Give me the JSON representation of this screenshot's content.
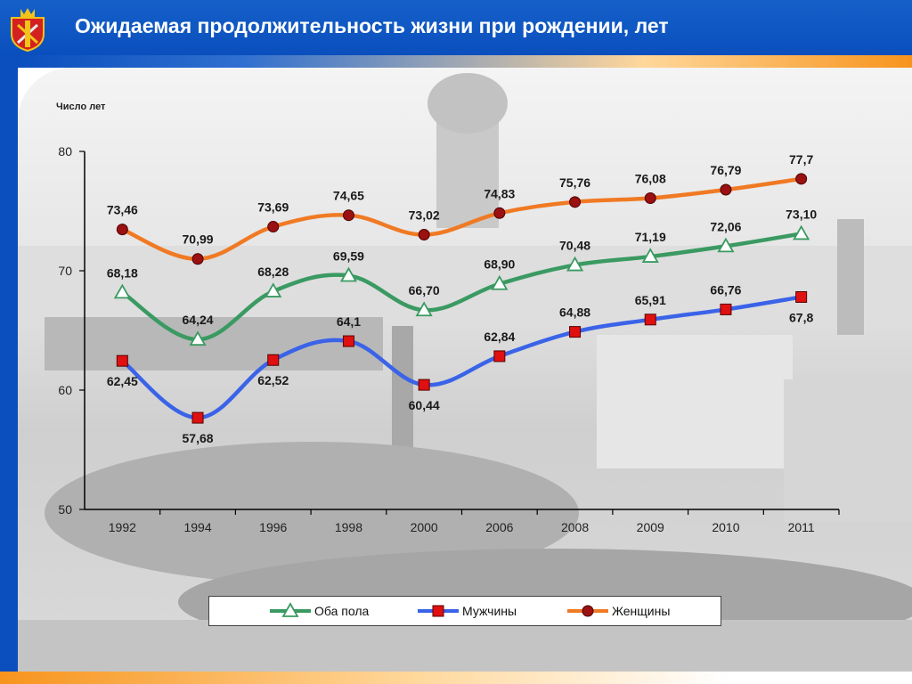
{
  "header": {
    "title": "Ожидаемая продолжительность жизни при рождении, лет"
  },
  "colors": {
    "header": "#0a4fbd",
    "both": "#3a9a62",
    "men": "#3a63e8",
    "women": "#f07a24",
    "men_marker": "#e01010",
    "women_marker": "#9b1010"
  },
  "chart_data": {
    "type": "line",
    "ylabel": "Число лет",
    "xlabel": "",
    "categories": [
      "1992",
      "1994",
      "1996",
      "1998",
      "2000",
      "2006",
      "2008",
      "2009",
      "2010",
      "2011"
    ],
    "ylim": [
      50,
      80
    ],
    "yticks": [
      "50",
      "60",
      "70",
      "80"
    ],
    "grid": false,
    "legend_position": "bottom",
    "series": [
      {
        "name": "Оба пола",
        "key": "both",
        "marker": "triangle",
        "values": [
          68.18,
          64.24,
          68.28,
          69.59,
          66.7,
          68.9,
          70.48,
          71.19,
          72.06,
          73.1
        ],
        "labels": [
          "68,18",
          "64,24",
          "68,28",
          "69,59",
          "66,70",
          "68,90",
          "70,48",
          "71,19",
          "72,06",
          "73,10"
        ]
      },
      {
        "name": "Мужчины",
        "key": "men",
        "marker": "square",
        "values": [
          62.45,
          57.68,
          62.52,
          64.1,
          60.44,
          62.84,
          64.88,
          65.91,
          66.76,
          67.8
        ],
        "labels": [
          "62,45",
          "57,68",
          "62,52",
          "64,1",
          "60,44",
          "62,84",
          "64,88",
          "65,91",
          "66,76",
          "67,8"
        ]
      },
      {
        "name": "Женщины",
        "key": "women",
        "marker": "circle",
        "values": [
          73.46,
          70.99,
          73.69,
          74.65,
          73.02,
          74.83,
          75.76,
          76.08,
          76.79,
          77.7
        ],
        "labels": [
          "73,46",
          "70,99",
          "73,69",
          "74,65",
          "73,02",
          "74,83",
          "75,76",
          "76,08",
          "76,79",
          "77,7"
        ]
      }
    ]
  }
}
